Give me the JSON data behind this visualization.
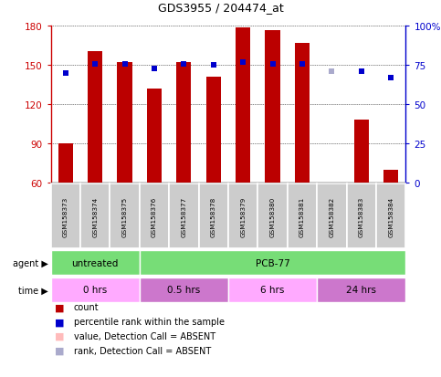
{
  "title": "GDS3955 / 204474_at",
  "samples": [
    "GSM158373",
    "GSM158374",
    "GSM158375",
    "GSM158376",
    "GSM158377",
    "GSM158378",
    "GSM158379",
    "GSM158380",
    "GSM158381",
    "GSM158382",
    "GSM158383",
    "GSM158384"
  ],
  "bar_values": [
    90,
    161,
    152,
    132,
    152,
    141,
    179,
    177,
    167,
    60,
    108,
    70
  ],
  "bar_colors": [
    "#bb0000",
    "#bb0000",
    "#bb0000",
    "#bb0000",
    "#bb0000",
    "#bb0000",
    "#bb0000",
    "#bb0000",
    "#bb0000",
    "#ffbbbb",
    "#bb0000",
    "#bb0000"
  ],
  "rank_values": [
    70,
    76,
    76,
    73,
    76,
    75,
    77,
    76,
    76,
    71,
    71,
    67
  ],
  "rank_colors": [
    "#0000cc",
    "#0000cc",
    "#0000cc",
    "#0000cc",
    "#0000cc",
    "#0000cc",
    "#0000cc",
    "#0000cc",
    "#0000cc",
    "#aaaacc",
    "#0000cc",
    "#0000cc"
  ],
  "ylim_left": [
    60,
    180
  ],
  "ylim_right": [
    0,
    100
  ],
  "yticks_left": [
    60,
    90,
    120,
    150,
    180
  ],
  "yticks_right": [
    0,
    25,
    50,
    75,
    100
  ],
  "ylabel_left_color": "#cc0000",
  "ylabel_right_color": "#0000cc",
  "agent_labels": [
    {
      "text": "untreated",
      "start": 0,
      "end": 3,
      "color": "#77dd77"
    },
    {
      "text": "PCB-77",
      "start": 3,
      "end": 12,
      "color": "#77dd77"
    }
  ],
  "time_labels": [
    {
      "text": "0 hrs",
      "start": 0,
      "end": 3,
      "color": "#ffaaff"
    },
    {
      "text": "0.5 hrs",
      "start": 3,
      "end": 6,
      "color": "#cc77cc"
    },
    {
      "text": "6 hrs",
      "start": 6,
      "end": 9,
      "color": "#ffaaff"
    },
    {
      "text": "24 hrs",
      "start": 9,
      "end": 12,
      "color": "#cc77cc"
    }
  ],
  "bar_width": 0.5,
  "baseline": 60,
  "background_color": "#ffffff",
  "sample_box_color": "#cccccc",
  "agent_arrow_label": "agent",
  "time_arrow_label": "time",
  "legend_items": [
    {
      "color": "#bb0000",
      "label": "count"
    },
    {
      "color": "#0000cc",
      "label": "percentile rank within the sample"
    },
    {
      "color": "#ffbbbb",
      "label": "value, Detection Call = ABSENT"
    },
    {
      "color": "#aaaacc",
      "label": "rank, Detection Call = ABSENT"
    }
  ]
}
